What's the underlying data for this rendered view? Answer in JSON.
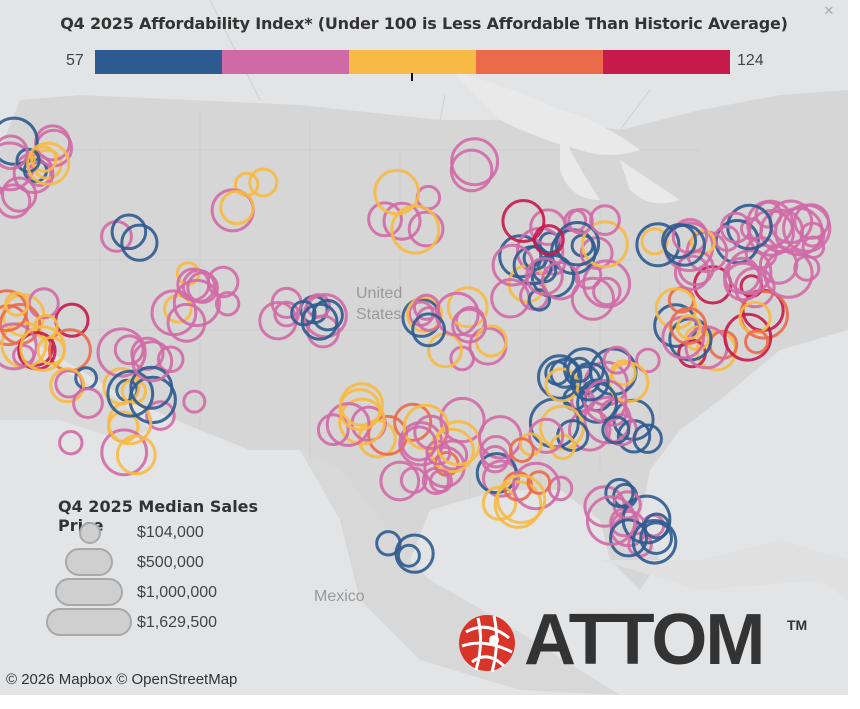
{
  "legend": {
    "title": "Q4 2025 Affordability Index* (Under 100 is Less Affordable Than Historic Average)",
    "min_label": "57",
    "max_label": "124",
    "colors": [
      "#2e5b8f",
      "#d06aa6",
      "#f7ba44",
      "#eb6a4a",
      "#c71a4c"
    ]
  },
  "size_legend": {
    "title": "Q4 2025 Median Sales Price",
    "values": [
      "$104,000",
      "$500,000",
      "$1,000,000",
      "$1,629,500"
    ]
  },
  "map_labels": {
    "country_us_line1": "United",
    "country_us_line2": "States",
    "mexico": "Mexico"
  },
  "attribution": "© 2026 Mapbox  © OpenStreetMap",
  "logo": {
    "text": "ATTOM",
    "tm": "TM"
  },
  "icons": {
    "close": "close-icon",
    "logo": "attom-globe-icon"
  }
}
